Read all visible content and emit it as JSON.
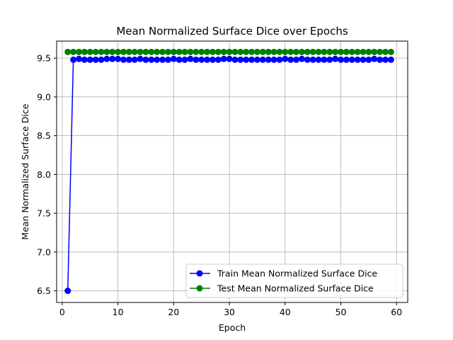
{
  "chart_data": {
    "type": "line",
    "title": "Mean Normalized Surface Dice over Epochs",
    "xlabel": "Epoch",
    "ylabel": "Mean Normalized Surface Dice",
    "xlim": [
      -1,
      62
    ],
    "ylim": [
      6.35,
      9.72
    ],
    "xticks": [
      0,
      10,
      20,
      30,
      40,
      50,
      60
    ],
    "yticks": [
      6.5,
      7.0,
      7.5,
      8.0,
      8.5,
      9.0,
      9.5
    ],
    "ytick_labels": [
      "6.5",
      "7.0",
      "7.5",
      "8.0",
      "8.5",
      "9.0",
      "9.5"
    ],
    "grid": true,
    "legend_position": "lower right",
    "x": [
      1,
      2,
      3,
      4,
      5,
      6,
      7,
      8,
      9,
      10,
      11,
      12,
      13,
      14,
      15,
      16,
      17,
      18,
      19,
      20,
      21,
      22,
      23,
      24,
      25,
      26,
      27,
      28,
      29,
      30,
      31,
      32,
      33,
      34,
      35,
      36,
      37,
      38,
      39,
      40,
      41,
      42,
      43,
      44,
      45,
      46,
      47,
      48,
      49,
      50,
      51,
      52,
      53,
      54,
      55,
      56,
      57,
      58,
      59
    ],
    "series": [
      {
        "name": "Train  Mean Normalized Surface Dice",
        "color": "#0000ff",
        "values": [
          6.5,
          9.48,
          9.49,
          9.48,
          9.48,
          9.48,
          9.48,
          9.49,
          9.49,
          9.49,
          9.48,
          9.48,
          9.48,
          9.49,
          9.48,
          9.48,
          9.48,
          9.48,
          9.48,
          9.49,
          9.48,
          9.48,
          9.49,
          9.48,
          9.48,
          9.48,
          9.48,
          9.48,
          9.49,
          9.49,
          9.48,
          9.48,
          9.48,
          9.48,
          9.48,
          9.48,
          9.48,
          9.48,
          9.48,
          9.49,
          9.48,
          9.48,
          9.49,
          9.48,
          9.48,
          9.48,
          9.48,
          9.48,
          9.49,
          9.48,
          9.48,
          9.48,
          9.48,
          9.48,
          9.48,
          9.49,
          9.48,
          9.48,
          9.48
        ]
      },
      {
        "name": "Test  Mean Normalized Surface Dice",
        "color": "#008000",
        "values": [
          9.58,
          9.58,
          9.58,
          9.58,
          9.58,
          9.58,
          9.58,
          9.58,
          9.58,
          9.58,
          9.58,
          9.58,
          9.58,
          9.58,
          9.58,
          9.58,
          9.58,
          9.58,
          9.58,
          9.58,
          9.58,
          9.58,
          9.58,
          9.58,
          9.58,
          9.58,
          9.58,
          9.58,
          9.58,
          9.58,
          9.58,
          9.58,
          9.58,
          9.58,
          9.58,
          9.58,
          9.58,
          9.58,
          9.58,
          9.58,
          9.58,
          9.58,
          9.58,
          9.58,
          9.58,
          9.58,
          9.58,
          9.58,
          9.58,
          9.58,
          9.58,
          9.58,
          9.58,
          9.58,
          9.58,
          9.58,
          9.58,
          9.58,
          9.58
        ]
      }
    ]
  }
}
